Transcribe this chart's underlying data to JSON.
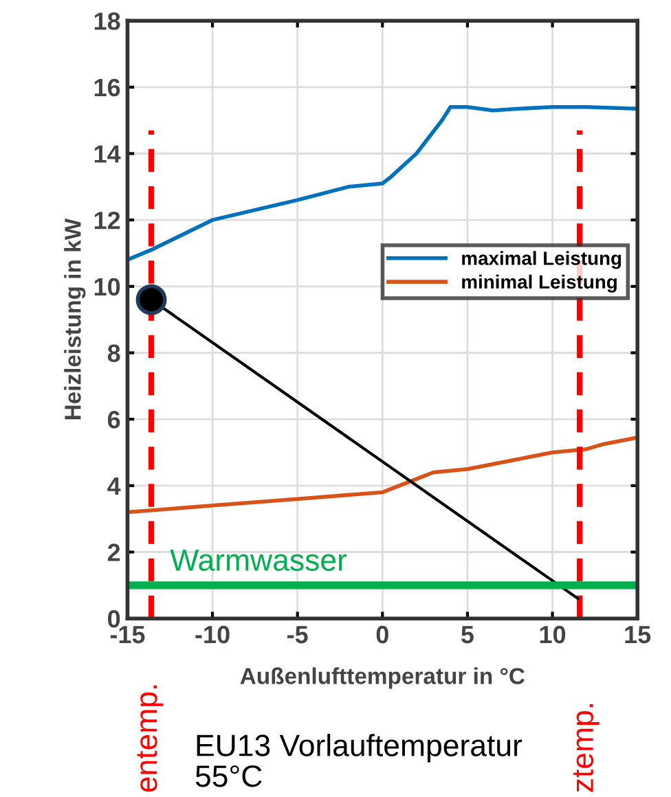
{
  "chart_data": {
    "type": "line",
    "xlabel": "Außenlufttemperatur in °C",
    "ylabel": "Heizleistung in kW",
    "xlim": [
      -15,
      15
    ],
    "xticks": [
      -15,
      -10,
      -5,
      0,
      5,
      10,
      15
    ],
    "ylim": [
      0,
      18
    ],
    "yticks": [
      0,
      2,
      4,
      6,
      8,
      10,
      12,
      14,
      16,
      18
    ],
    "grid": true,
    "legend": "right",
    "series": [
      {
        "name": "maximal Leistung",
        "color": "#0072bd",
        "x": [
          -15,
          -13.6,
          -10,
          -5,
          -2,
          0,
          0.5,
          2,
          3.5,
          4,
          5,
          6.5,
          8,
          10,
          12,
          15
        ],
        "values": [
          10.8,
          11.1,
          12.0,
          12.6,
          13.0,
          13.1,
          13.3,
          14.0,
          15.0,
          15.4,
          15.4,
          15.3,
          15.35,
          15.4,
          15.4,
          15.35
        ]
      },
      {
        "name": "minimal Leistung",
        "color": "#d95319",
        "x": [
          -15,
          -10,
          -5,
          0,
          0.5,
          2,
          3,
          5,
          8,
          10,
          12,
          13,
          15
        ],
        "values": [
          3.2,
          3.4,
          3.6,
          3.8,
          3.9,
          4.2,
          4.4,
          4.5,
          4.8,
          5.0,
          5.1,
          5.25,
          5.45
        ]
      },
      {
        "color": "#ff0000",
        "line_style": "dashed",
        "x": [
          -13.6,
          -13.6
        ],
        "values": [
          0,
          14.7
        ]
      },
      {
        "color": "#ff0000",
        "line_style": "dashed",
        "x": [
          11.6,
          11.6
        ],
        "values": [
          0,
          14.7
        ]
      },
      {
        "color": "#000000",
        "x": [
          -13.6,
          11.5
        ],
        "values": [
          9.6,
          0.6
        ]
      },
      {
        "type": "scatter",
        "color": "#000000",
        "marker": "circle",
        "x": [
          -13.6
        ],
        "values": [
          9.6
        ]
      }
    ],
    "ref_lines": [
      {
        "axis": "y",
        "value": 1.0,
        "label": "Warmwasser",
        "color": "#00b050"
      }
    ],
    "annotations": [
      "EU13 Vorlauftemperatur\n55°C",
      "entemp.",
      "ztemp."
    ]
  }
}
